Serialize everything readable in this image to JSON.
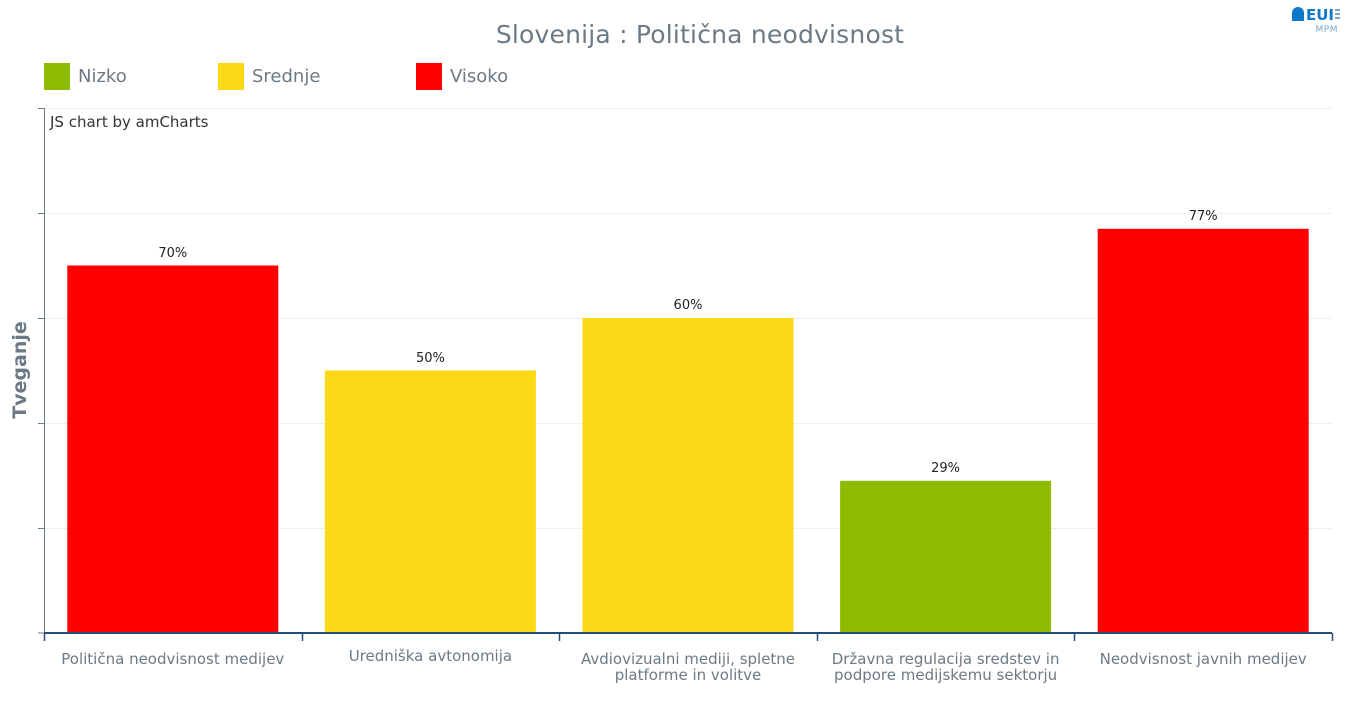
{
  "page": {
    "title": "Slovenija : Politična neodvisnost",
    "credit": "JS chart by amCharts",
    "logo": {
      "main": "EUI",
      "sub": "MPM"
    }
  },
  "colors": {
    "Nizko": "#8cbb00",
    "Srednje": "#fcd917",
    "Visoko": "#fe0000",
    "axis": "#1f4e79",
    "grid": "#eeeeee",
    "text": "#6b7a86"
  },
  "legend": [
    {
      "label": "Nizko",
      "color": "#8cbb00"
    },
    {
      "label": "Srednje",
      "color": "#fcd917"
    },
    {
      "label": "Visoko",
      "color": "#fe0000"
    }
  ],
  "chart_data": {
    "type": "bar",
    "title": "Slovenija : Politična neodvisnost",
    "ylabel": "Tveganje",
    "xlabel": "",
    "ylim": [
      0,
      100
    ],
    "grid": true,
    "legend_position": "top-left",
    "categories": [
      "Politična neodvisnost medijev",
      "Uredniška avtonomija",
      "Avdiovizualni mediji, spletne platforme in volitve",
      "Državna regulacija sredstev in podpore medijskemu sektorju",
      "Neodvisnost javnih medijev"
    ],
    "values": [
      70,
      50,
      60,
      29,
      77
    ],
    "data_labels": [
      "70%",
      "50%",
      "60%",
      "29%",
      "77%"
    ],
    "risk_levels": [
      "Visoko",
      "Srednje",
      "Srednje",
      "Nizko",
      "Visoko"
    ]
  }
}
